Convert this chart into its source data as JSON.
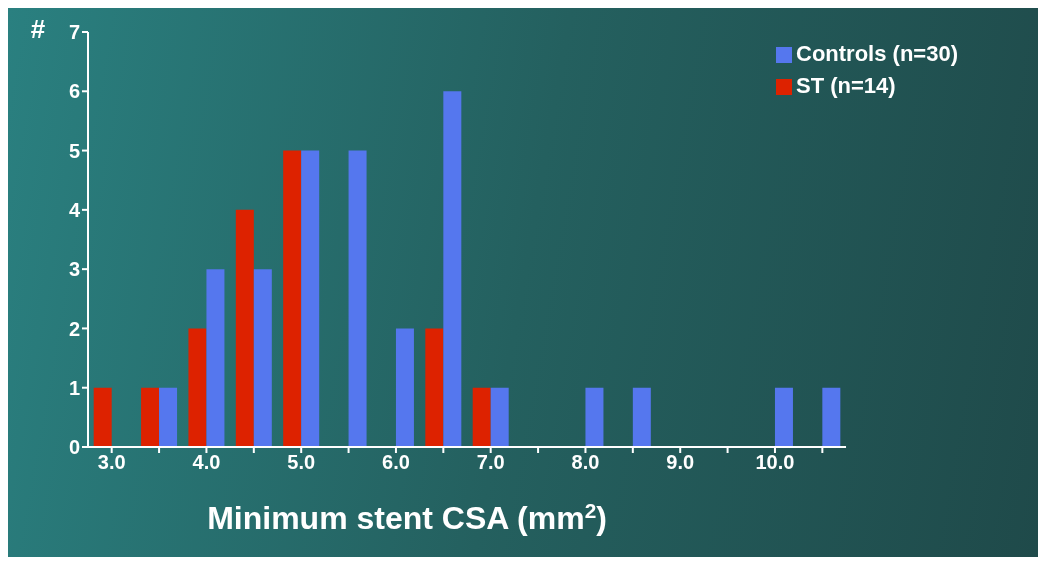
{
  "chart_data": {
    "type": "bar",
    "xlabel": "Minimum stent CSA (mm$^{2}$)",
    "ylabel": "#",
    "categories": [
      "3.0",
      null,
      "4.0",
      null,
      "5.0",
      null,
      "6.0",
      null,
      "7.0",
      null,
      "8.0",
      null,
      "9.0",
      null,
      "10.0",
      null
    ],
    "series": [
      {
        "name": "ST (n=14)",
        "color": "#dd2200",
        "values": [
          1,
          1,
          2,
          4,
          5,
          0,
          0,
          2,
          1,
          0,
          0,
          0,
          0,
          0,
          0,
          0
        ]
      },
      {
        "name": "Controls (n=30)",
        "color": "#5577ee",
        "values": [
          0,
          1,
          3,
          3,
          5,
          5,
          2,
          6,
          1,
          0,
          1,
          1,
          0,
          0,
          1,
          1
        ]
      }
    ],
    "ylim": [
      0,
      7
    ],
    "yticks": [
      0,
      1,
      2,
      3,
      4,
      5,
      6,
      7
    ],
    "legend": "top right"
  }
}
